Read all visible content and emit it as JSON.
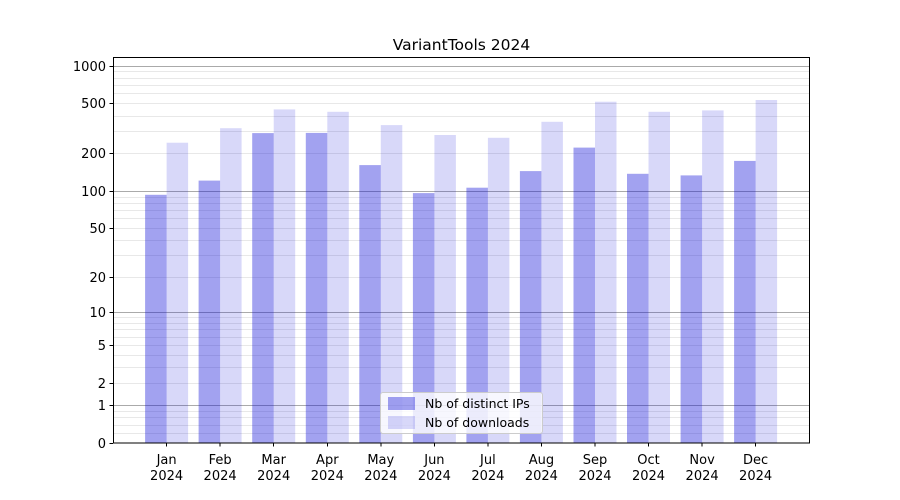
{
  "chart_data": {
    "type": "bar",
    "title": "VariantTools 2024",
    "categories": [
      "Jan 2024",
      "Feb 2024",
      "Mar 2024",
      "Apr 2024",
      "May 2024",
      "Jun 2024",
      "Jul 2024",
      "Aug 2024",
      "Sep 2024",
      "Oct 2024",
      "Nov 2024",
      "Dec 2024"
    ],
    "series": [
      {
        "name": "Nb of distinct IPs",
        "color": "rgba(10,10,215,0.38)",
        "values": [
          93,
          121,
          290,
          291,
          161,
          96,
          106,
          144,
          222,
          137,
          133,
          174
        ]
      },
      {
        "name": "Nb of downloads",
        "color": "rgba(10,10,215,0.16)",
        "values": [
          243,
          317,
          448,
          429,
          336,
          280,
          266,
          357,
          516,
          429,
          440,
          532
        ]
      }
    ],
    "y_scale": "log1p",
    "ylim": [
      0,
      1160
    ],
    "y_ticks": [
      0,
      1,
      2,
      5,
      10,
      20,
      50,
      100,
      200,
      500,
      1000
    ],
    "y_minor_ticks": [
      0.2,
      0.4,
      0.6,
      0.8,
      2,
      3,
      4,
      5,
      6,
      7,
      8,
      9,
      20,
      30,
      40,
      50,
      60,
      70,
      80,
      90,
      200,
      300,
      400,
      500,
      600,
      700,
      800,
      900
    ],
    "grid": "both",
    "legend_position": "lower center",
    "xlabel": "",
    "ylabel": ""
  },
  "colors": {
    "background": "#ffffff",
    "major_grid": "#aaaaaa",
    "minor_grid": "#e8e8e8",
    "axis": "#000000",
    "text": "#000000"
  }
}
